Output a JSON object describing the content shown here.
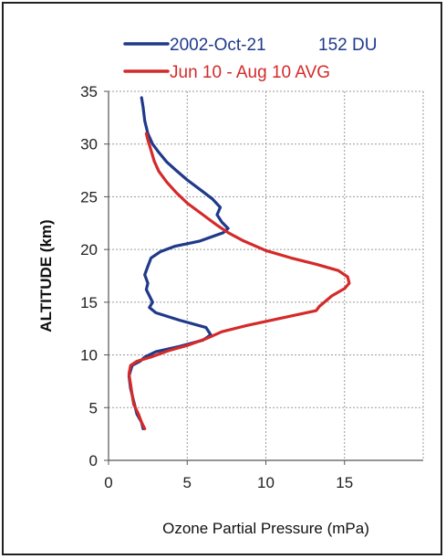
{
  "chart_data": {
    "type": "line",
    "xlabel": "Ozone Partial Pressure (mPa)",
    "ylabel": "ALTITUDE (km)",
    "xlim": [
      0,
      20
    ],
    "ylim": [
      0,
      35
    ],
    "xticks": [
      0,
      5,
      10,
      15
    ],
    "yticks": [
      0,
      5,
      10,
      15,
      20,
      25,
      30,
      35
    ],
    "grid": "dotted horizontal and vertical",
    "legend_position": "top",
    "series": [
      {
        "name": "2002-Oct-21",
        "note": "152 DU",
        "color": "#1f3a8a",
        "points": [
          [
            2.2,
            3.0
          ],
          [
            2.1,
            3.6
          ],
          [
            1.8,
            4.4
          ],
          [
            1.6,
            5.6
          ],
          [
            1.4,
            6.8
          ],
          [
            1.3,
            8.0
          ],
          [
            1.5,
            9.0
          ],
          [
            2.0,
            9.4
          ],
          [
            2.3,
            9.8
          ],
          [
            3.0,
            10.3
          ],
          [
            4.5,
            10.8
          ],
          [
            6.0,
            11.4
          ],
          [
            6.5,
            11.9
          ],
          [
            6.2,
            12.6
          ],
          [
            4.5,
            13.3
          ],
          [
            3.0,
            14.0
          ],
          [
            2.6,
            14.5
          ],
          [
            2.8,
            15.0
          ],
          [
            2.6,
            15.6
          ],
          [
            2.4,
            16.2
          ],
          [
            2.5,
            16.8
          ],
          [
            2.3,
            17.6
          ],
          [
            2.5,
            18.4
          ],
          [
            2.7,
            19.2
          ],
          [
            3.3,
            19.8
          ],
          [
            4.2,
            20.3
          ],
          [
            5.8,
            20.8
          ],
          [
            7.3,
            21.6
          ],
          [
            7.6,
            22.0
          ],
          [
            7.2,
            22.6
          ],
          [
            6.9,
            23.3
          ],
          [
            7.1,
            24.0
          ],
          [
            6.6,
            24.8
          ],
          [
            5.8,
            25.7
          ],
          [
            5.0,
            26.6
          ],
          [
            4.3,
            27.5
          ],
          [
            3.7,
            28.3
          ],
          [
            3.2,
            29.2
          ],
          [
            2.8,
            30.0
          ],
          [
            2.5,
            31.0
          ],
          [
            2.3,
            32.2
          ],
          [
            2.2,
            33.5
          ],
          [
            2.1,
            34.4
          ]
        ]
      },
      {
        "name": "Jun 10 - Aug 10 AVG",
        "color": "#d42a2a",
        "points": [
          [
            2.3,
            3.0
          ],
          [
            2.1,
            3.6
          ],
          [
            1.9,
            4.4
          ],
          [
            1.6,
            5.3
          ],
          [
            1.5,
            6.2
          ],
          [
            1.4,
            7.2
          ],
          [
            1.3,
            8.2
          ],
          [
            1.4,
            9.0
          ],
          [
            1.8,
            9.4
          ],
          [
            2.7,
            9.8
          ],
          [
            3.8,
            10.4
          ],
          [
            5.0,
            10.9
          ],
          [
            6.3,
            11.6
          ],
          [
            7.2,
            12.2
          ],
          [
            8.8,
            12.8
          ],
          [
            11.0,
            13.5
          ],
          [
            13.2,
            14.2
          ],
          [
            13.4,
            14.6
          ],
          [
            14.2,
            15.6
          ],
          [
            15.0,
            16.3
          ],
          [
            15.3,
            16.8
          ],
          [
            15.2,
            17.4
          ],
          [
            14.6,
            18.0
          ],
          [
            13.2,
            18.6
          ],
          [
            11.6,
            19.2
          ],
          [
            10.0,
            19.9
          ],
          [
            8.6,
            20.8
          ],
          [
            7.6,
            21.6
          ],
          [
            6.8,
            22.4
          ],
          [
            5.9,
            23.4
          ],
          [
            5.0,
            24.4
          ],
          [
            4.3,
            25.4
          ],
          [
            3.7,
            26.4
          ],
          [
            3.2,
            27.4
          ],
          [
            2.9,
            28.4
          ],
          [
            2.7,
            29.4
          ],
          [
            2.5,
            30.4
          ],
          [
            2.4,
            31.0
          ]
        ]
      }
    ]
  }
}
